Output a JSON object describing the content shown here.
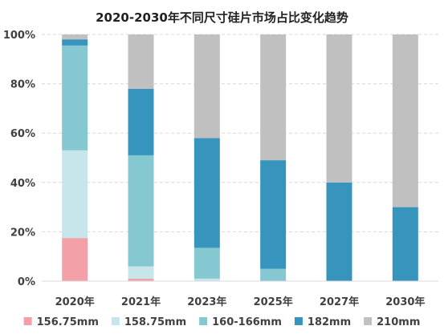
{
  "chart_data": {
    "type": "bar",
    "stacked": true,
    "title": "2020-2030年不同尺寸硅片市场占比变化趋势",
    "categories": [
      "2020年",
      "2021年",
      "2023年",
      "2025年",
      "2027年",
      "2030年"
    ],
    "y_ticks": [
      "0%",
      "20%",
      "40%",
      "60%",
      "80%",
      "100%"
    ],
    "ylim": [
      0,
      100
    ],
    "grid": true,
    "legend_position": "bottom",
    "series": [
      {
        "name": "156.75mm",
        "color": "#f4a0a8",
        "values": [
          17.5,
          1,
          0,
          0,
          0,
          0
        ]
      },
      {
        "name": "158.75mm",
        "color": "#c6e6ec",
        "values": [
          35.5,
          5,
          1,
          0,
          0,
          0
        ]
      },
      {
        "name": "160-166mm",
        "color": "#86c8d2",
        "values": [
          42.5,
          45,
          12.5,
          5,
          0,
          0
        ]
      },
      {
        "name": "182mm",
        "color": "#3694bd",
        "values": [
          2.5,
          27,
          44.5,
          44,
          40,
          30
        ]
      },
      {
        "name": "210mm",
        "color": "#c0c0c0",
        "values": [
          2,
          22,
          42,
          51,
          60,
          70
        ]
      }
    ]
  }
}
